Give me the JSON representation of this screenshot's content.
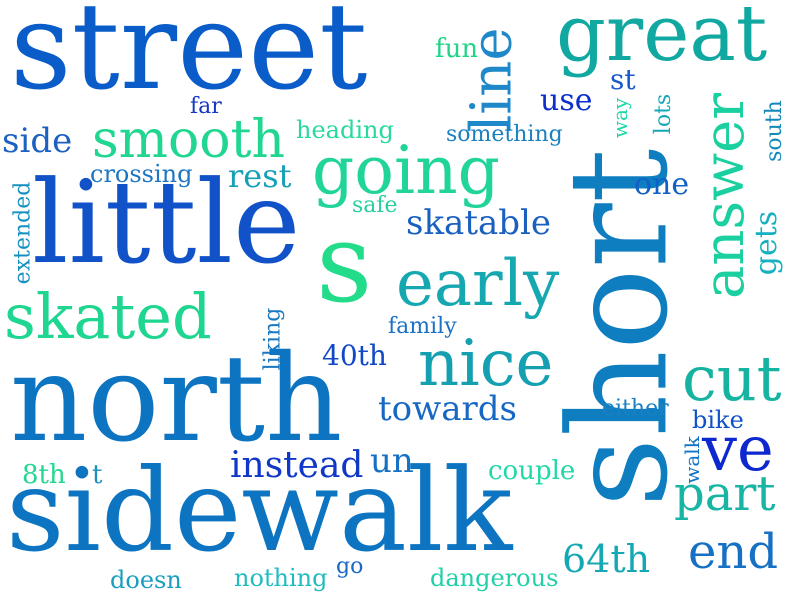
{
  "words": {
    "street": {
      "text": "street",
      "color": "#0a5cc8"
    },
    "great": {
      "text": "great",
      "color": "#10a8a0"
    },
    "line": {
      "text": "line",
      "color": "#1e88c8"
    },
    "fun": {
      "text": "fun",
      "color": "#22d488"
    },
    "st": {
      "text": "st",
      "color": "#1858c8"
    },
    "use": {
      "text": "use",
      "color": "#0e2ecc"
    },
    "far": {
      "text": "far",
      "color": "#1638c0"
    },
    "way": {
      "text": "way",
      "color": "#1ed8a8"
    },
    "lots": {
      "text": "lots",
      "color": "#14a8b8"
    },
    "south": {
      "text": "south",
      "color": "#1488b8"
    },
    "side": {
      "text": "side",
      "color": "#1c60c0"
    },
    "smooth": {
      "text": "smooth",
      "color": "#20d690"
    },
    "heading": {
      "text": "heading",
      "color": "#2ad8a0"
    },
    "something": {
      "text": "something",
      "color": "#1a80c0"
    },
    "short": {
      "text": "short",
      "color": "#0e7ec0"
    },
    "answer": {
      "text": "answer",
      "color": "#1ad0a0"
    },
    "gets": {
      "text": "gets",
      "color": "#16b0c0"
    },
    "going": {
      "text": "going",
      "color": "#20d49a"
    },
    "crossing": {
      "text": "crossing",
      "color": "#1c76c4"
    },
    "rest": {
      "text": "rest",
      "color": "#16a0b8"
    },
    "one": {
      "text": "one",
      "color": "#1060c8"
    },
    "extended": {
      "text": "extended",
      "color": "#1490c0"
    },
    "little": {
      "text": "little",
      "color": "#1252c8"
    },
    "safe": {
      "text": "safe",
      "color": "#28d0a0"
    },
    "skatable": {
      "text": "skatable",
      "color": "#1a60c0"
    },
    "s_letter": {
      "text": "s",
      "color": "#22dc8a"
    },
    "early": {
      "text": "early",
      "color": "#16a8b0"
    },
    "skated": {
      "text": "skated",
      "color": "#1ed690"
    },
    "family": {
      "text": "family",
      "color": "#1a70c4"
    },
    "liking": {
      "text": "liking",
      "color": "#1a78c0"
    },
    "north": {
      "text": "north",
      "color": "#0c74c0"
    },
    "fortieth": {
      "text": "40th",
      "color": "#1048c8"
    },
    "nice": {
      "text": "nice",
      "color": "#14a0b0"
    },
    "cut": {
      "text": "cut",
      "color": "#16b4a0"
    },
    "towards": {
      "text": "towards",
      "color": "#1668c4"
    },
    "either": {
      "text": "either",
      "color": "#1a80c4"
    },
    "bike": {
      "text": "bike",
      "color": "#1050c8"
    },
    "ve": {
      "text": "ve",
      "color": "#0e28d0"
    },
    "walk": {
      "text": "walk",
      "color": "#1474c4"
    },
    "instead": {
      "text": "instead",
      "color": "#1038c8"
    },
    "un": {
      "text": "un",
      "color": "#1670c4"
    },
    "eighth": {
      "text": "8th",
      "color": "#22d890"
    },
    "t_letter": {
      "text": "t",
      "color": "#1e90c0"
    },
    "couple": {
      "text": "couple",
      "color": "#22d8a8"
    },
    "part": {
      "text": "part",
      "color": "#18b4a4"
    },
    "sidewalk": {
      "text": "sidewalk",
      "color": "#0c74c0"
    },
    "end": {
      "text": "end",
      "color": "#1670c4"
    },
    "sixtyfourth": {
      "text": "64th",
      "color": "#14a8b4"
    },
    "doesn": {
      "text": "doesn",
      "color": "#1a9ec0"
    },
    "nothing": {
      "text": "nothing",
      "color": "#20bcc0"
    },
    "go": {
      "text": "go",
      "color": "#1868c4"
    },
    "dangerous": {
      "text": "dangerous",
      "color": "#22d0a8"
    }
  }
}
